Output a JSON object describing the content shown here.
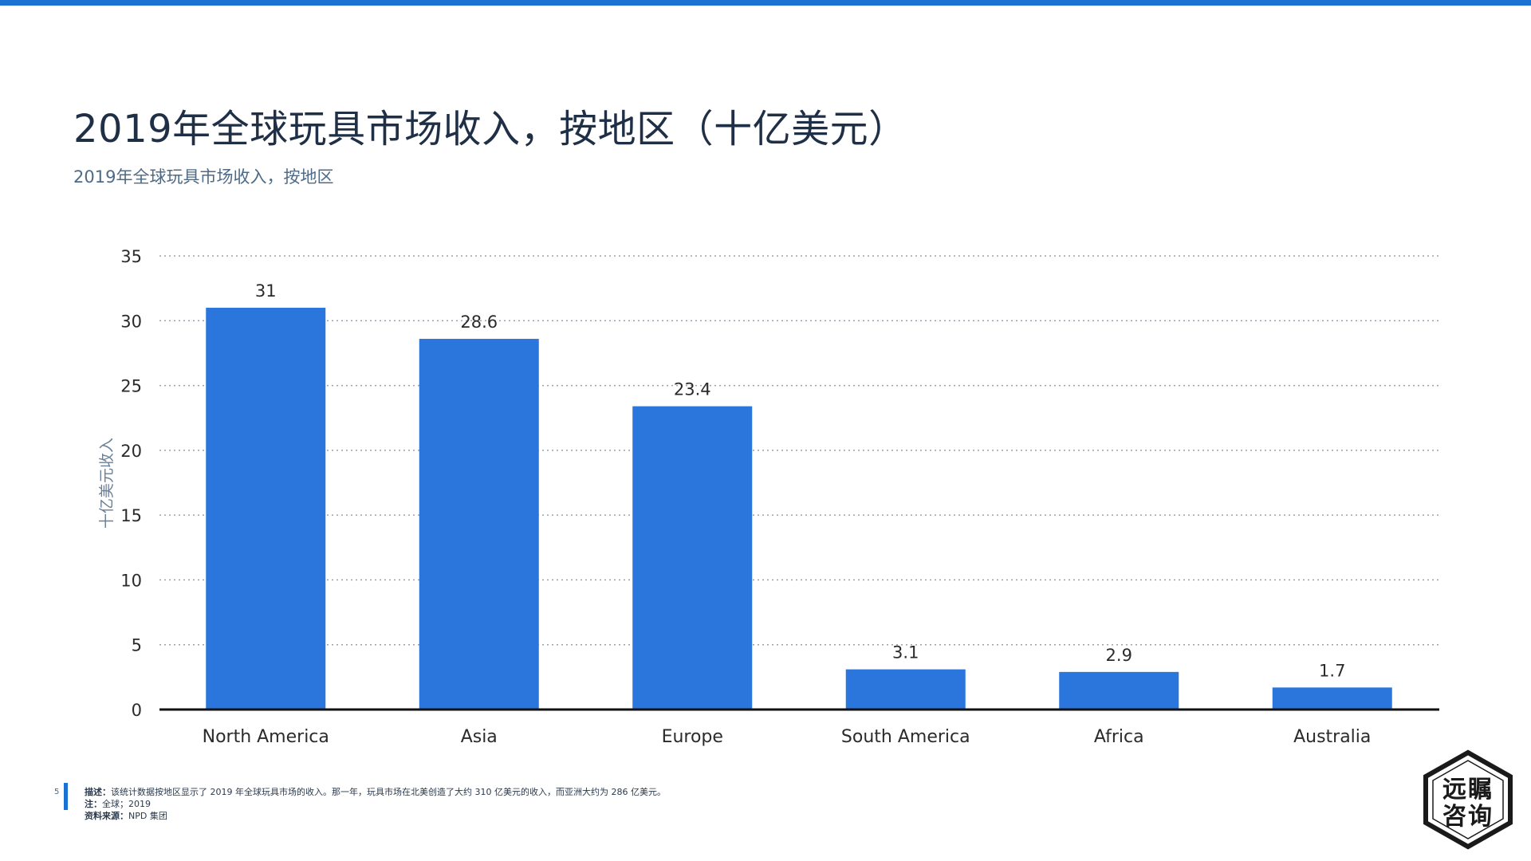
{
  "header": {
    "title": "2019年全球玩具市场收入，按地区（十亿美元）",
    "subtitle": "2019年全球玩具市场收入，按地区"
  },
  "chart_data": {
    "type": "bar",
    "categories": [
      "North America",
      "Asia",
      "Europe",
      "South America",
      "Africa",
      "Australia"
    ],
    "values": [
      31,
      28.6,
      23.4,
      3.1,
      2.9,
      1.7
    ],
    "data_labels": [
      "31",
      "28.6",
      "23.4",
      "3.1",
      "2.9",
      "1.7"
    ],
    "ylabel": "十亿美元收入",
    "ylim": [
      0,
      35
    ],
    "yticks": [
      0,
      5,
      10,
      15,
      20,
      25,
      30,
      35
    ],
    "grid": true,
    "bar_color": "#2a76dd"
  },
  "footer": {
    "page_number": "5",
    "description_label": "描述：",
    "description": "该统计数据按地区显示了 2019 年全球玩具市场的收入。那一年，玩具市场在北美创造了大约 310 亿美元的收入，而亚洲大约为 286 亿美元。",
    "note_label": "注：",
    "note": "全球；2019",
    "source_label": "资料来源：",
    "source": "NPD 集团"
  },
  "logo": {
    "line1": "远瞩",
    "line2": "咨询"
  },
  "colors": {
    "accent": "#1a73d2",
    "bar": "#2a76dd"
  }
}
